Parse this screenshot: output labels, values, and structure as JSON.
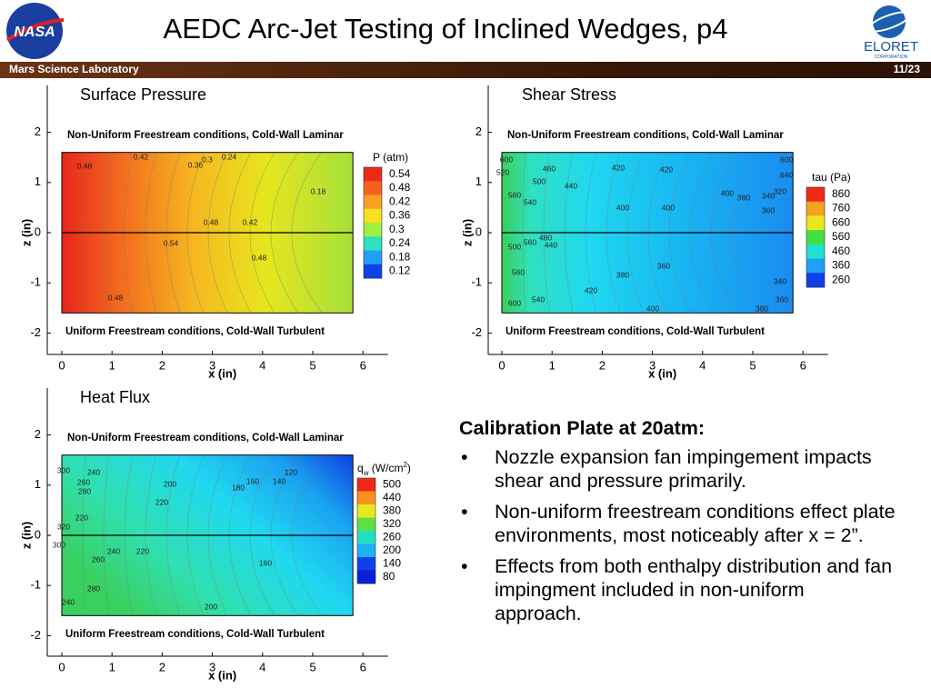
{
  "header": {
    "title": "AEDC Arc-Jet Testing of Inclined Wedges, p4",
    "section": "Mars Science Laboratory",
    "page": "11/23",
    "logo_left": "NASA",
    "logo_right": "ELORET",
    "logo_right_sub": "CORPORATION"
  },
  "plots": [
    {
      "title": "Surface Pressure",
      "top_label": "Non-Uniform Freestream conditions, Cold-Wall Laminar",
      "bottom_label": "Uniform Freestream conditions, Cold-Wall Turbulent",
      "x_label": "x (in)",
      "y_label": "z (in)",
      "xticks": [
        0,
        1,
        2,
        3,
        4,
        5,
        6
      ],
      "yticks": [
        -2,
        -1,
        0,
        1,
        2
      ],
      "colorbar_title": {
        "symbol": "P (atm)"
      },
      "colorbar_ticks": [
        0.54,
        0.48,
        0.42,
        0.36,
        0.3,
        0.24,
        0.18,
        0.12
      ],
      "contour_labels": [
        "0.48",
        "0.42",
        "0.36",
        "0.3",
        "0.24",
        "0.18",
        "0.48",
        "0.42",
        "0.54",
        "0.48",
        "0.48"
      ]
    },
    {
      "title": "Shear Stress",
      "top_label": "Non-Uniform Freestream conditions, Cold-Wall Laminar",
      "bottom_label": "Uniform Freestream conditions, Cold-Wall Turbulent",
      "x_label": "x (in)",
      "y_label": "z (in)",
      "xticks": [
        0,
        1,
        2,
        3,
        4,
        5,
        6
      ],
      "yticks": [
        -2,
        -1,
        0,
        1,
        2
      ],
      "colorbar_title": {
        "symbol": "tau (Pa)"
      },
      "colorbar_ticks": [
        860,
        760,
        660,
        560,
        460,
        360,
        260
      ],
      "contour_labels": [
        "600",
        "520",
        "460",
        "420",
        "420",
        "400",
        "380",
        "340",
        "500",
        "440",
        "400",
        "400",
        "540",
        "560",
        "480",
        "440",
        "560",
        "500",
        "380",
        "360",
        "420",
        "400",
        "380",
        "340",
        "360",
        "560",
        "540",
        "600",
        "600",
        "640",
        "320",
        "360"
      ]
    },
    {
      "title": "Heat Flux",
      "top_label": "Non-Uniform Freestream conditions, Cold-Wall Laminar",
      "bottom_label": "Uniform Freestream conditions, Cold-Wall Turbulent",
      "x_label": "x (in)",
      "y_label": "z (in)",
      "xticks": [
        0,
        1,
        2,
        3,
        4,
        5,
        6
      ],
      "yticks": [
        -2,
        -1,
        0,
        1,
        2
      ],
      "colorbar_title": {
        "symbol": "q",
        "subscript": "w",
        "unit": " (W/cm",
        "superscript": "2",
        "close": ")"
      },
      "colorbar_ticks": [
        500,
        440,
        380,
        320,
        260,
        200,
        140,
        80
      ],
      "contour_labels": [
        "300",
        "240",
        "260",
        "280",
        "200",
        "220",
        "180",
        "160",
        "140",
        "120",
        "220",
        "240",
        "260",
        "220",
        "160",
        "200",
        "300",
        "240",
        "280",
        "320"
      ]
    }
  ],
  "text": {
    "heading": "Calibration Plate at 20atm:",
    "bullets": [
      "Nozzle expansion fan impingement impacts shear and pressure primarily.",
      "Non-uniform freestream conditions effect plate environments, most noticeably after x = 2”.",
      "Effects from both enthalpy distribution and fan impingment included in non-uniform approach."
    ]
  }
}
